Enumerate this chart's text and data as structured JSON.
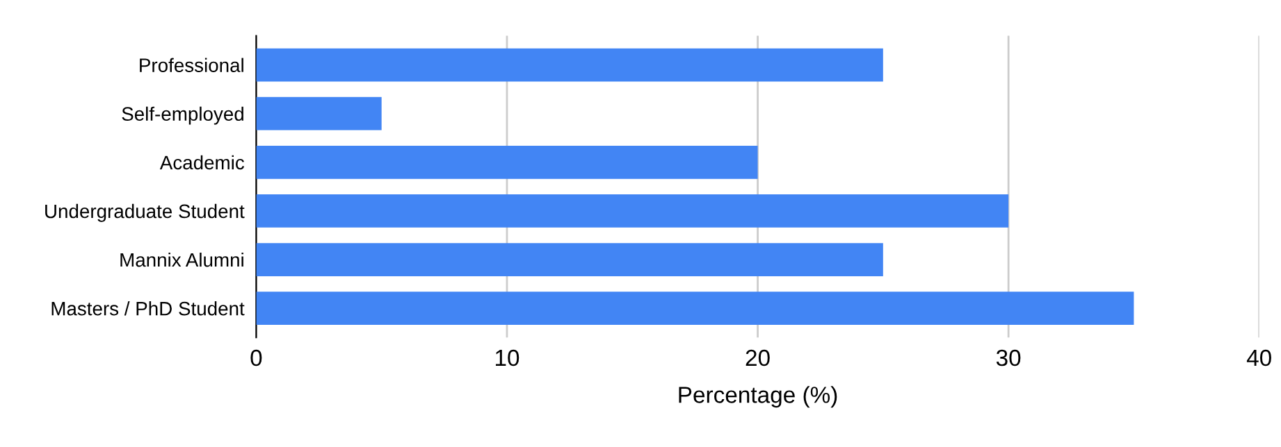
{
  "chart_data": {
    "type": "bar",
    "orientation": "horizontal",
    "categories": [
      "Professional",
      "Self-employed",
      "Academic",
      "Undergraduate Student",
      "Mannix Alumni",
      "Masters / PhD Student"
    ],
    "values": [
      25,
      5,
      20,
      30,
      25,
      35
    ],
    "color": "#4285f4",
    "xlabel": "Percentage (%)",
    "xlim": [
      0,
      40
    ],
    "xticks": [
      0,
      10,
      20,
      30,
      40
    ],
    "grid": "x",
    "legend": false
  }
}
